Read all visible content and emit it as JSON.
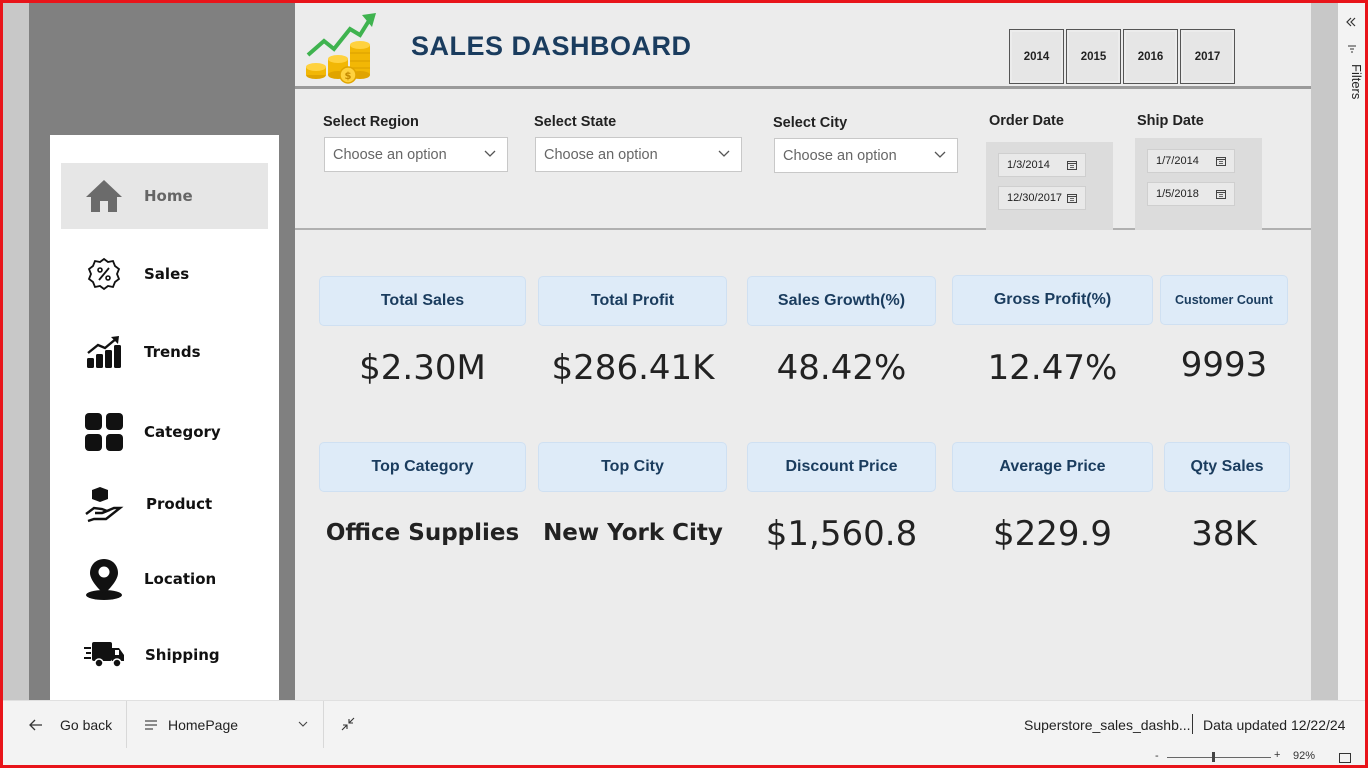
{
  "header": {
    "title": "SALES DASHBOARD",
    "years": [
      "2014",
      "2015",
      "2016",
      "2017"
    ]
  },
  "nav": {
    "items": [
      {
        "label": "Home",
        "icon": "home-icon",
        "active": true
      },
      {
        "label": "Sales",
        "icon": "percent-badge-icon"
      },
      {
        "label": "Trends",
        "icon": "trend-bars-icon"
      },
      {
        "label": "Category",
        "icon": "category-grid-icon"
      },
      {
        "label": "Product",
        "icon": "hand-box-icon"
      },
      {
        "label": "Location",
        "icon": "location-pin-icon"
      },
      {
        "label": "Shipping",
        "icon": "truck-icon"
      }
    ]
  },
  "filters": {
    "region": {
      "title": "Select Region",
      "placeholder": "Choose an option"
    },
    "state": {
      "title": "Select State",
      "placeholder": "Choose an option"
    },
    "city": {
      "title": "Select City",
      "placeholder": "Choose an option"
    },
    "order_date": {
      "title": "Order Date",
      "start": "1/3/2014",
      "end": "12/30/2017"
    },
    "ship_date": {
      "title": "Ship Date",
      "start": "1/7/2014",
      "end": "1/5/2018"
    }
  },
  "kpis_row1": [
    {
      "label": "Total Sales",
      "value": "$2.30M"
    },
    {
      "label": "Total Profit",
      "value": "$286.41K"
    },
    {
      "label": "Sales Growth(%)",
      "value": "48.42%"
    },
    {
      "label": "Gross Profit(%)",
      "value": "12.47%"
    },
    {
      "label": "Customer Count",
      "value": "9993"
    }
  ],
  "kpis_row2": [
    {
      "label": "Top Category",
      "value": "Office Supplies"
    },
    {
      "label": "Top City",
      "value": "New York City"
    },
    {
      "label": "Discount Price",
      "value": "$1,560.8"
    },
    {
      "label": "Average Price",
      "value": "$229.9"
    },
    {
      "label": "Qty Sales",
      "value": "38K"
    }
  ],
  "filters_pane": {
    "label": "Filters"
  },
  "bottom_bar": {
    "back_label": "Go back",
    "page_label": "HomePage",
    "file_name": "Superstore_sales_dashb...",
    "updated": "Data updated 12/22/24",
    "zoom": "92%"
  },
  "colors": {
    "title": "#1a3c5e",
    "kpi_header_bg": "#deebf8",
    "frame": "#e8141a"
  }
}
